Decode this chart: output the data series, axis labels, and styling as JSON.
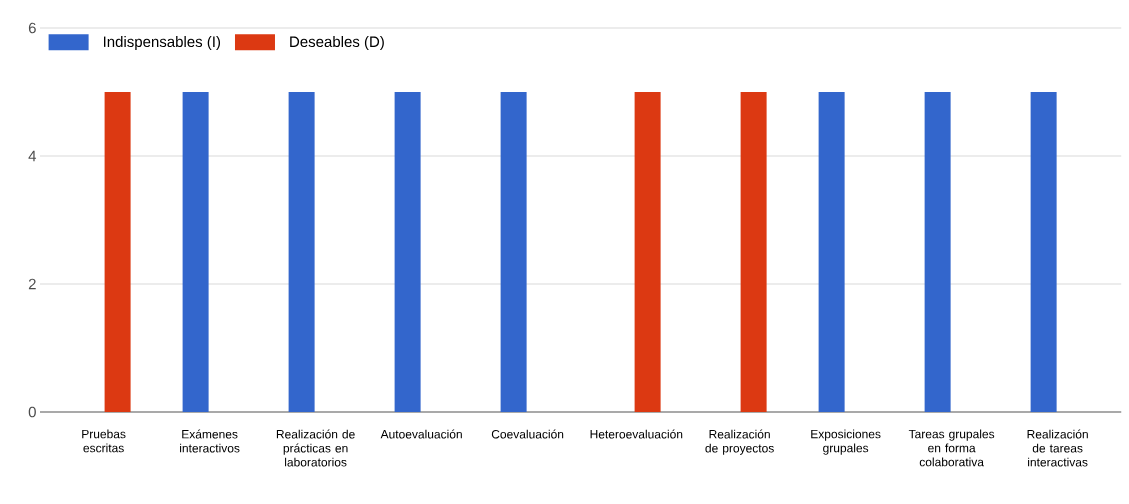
{
  "chart_data": {
    "type": "bar",
    "categories": [
      "Pruebas escritas",
      "Exámenes interactivos",
      "Realización de prácticas en laboratorios",
      "Autoevaluación",
      "Coevaluación",
      "Heteroevaluación",
      "Realización de proyectos",
      "Exposiciones grupales",
      "Tareas grupales en forma colaborativa",
      "Realización de tareas interactivas"
    ],
    "series": [
      {
        "name": "Indispensables (I)",
        "color": "#3366cc",
        "values": [
          0,
          5,
          5,
          5,
          5,
          0,
          0,
          5,
          5,
          5
        ]
      },
      {
        "name": "Deseables (D)",
        "color": "#dc3912",
        "values": [
          5,
          0,
          0,
          0,
          0,
          5,
          5,
          0,
          0,
          0
        ]
      }
    ],
    "ylim": [
      0,
      6
    ],
    "yticks": [
      0,
      2,
      4,
      6
    ],
    "grid": "y",
    "legend": "top left"
  }
}
